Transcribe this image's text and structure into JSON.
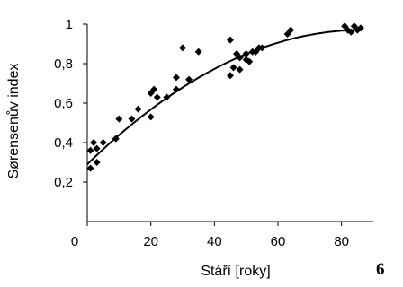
{
  "chart_data": {
    "type": "scatter",
    "title": "",
    "xlabel": "Stáří [roky]",
    "ylabel": "Sørensenův index",
    "xlim": [
      0,
      90
    ],
    "ylim": [
      0,
      1
    ],
    "x_ticks": [
      0,
      20,
      40,
      60,
      80
    ],
    "x_tick_labels": [
      "0",
      "20",
      "40",
      "60",
      "80"
    ],
    "y_ticks": [
      0.2,
      0.4,
      0.6,
      0.8,
      1.0
    ],
    "y_tick_labels": [
      "0,2",
      "0,4",
      "0,6",
      "0,8",
      "1"
    ],
    "grid": false,
    "legend": "none",
    "marker": "diamond",
    "marker_color": "#000000",
    "figure_number": "6",
    "points": [
      {
        "x": 1,
        "y": 0.27
      },
      {
        "x": 1,
        "y": 0.36
      },
      {
        "x": 2,
        "y": 0.4
      },
      {
        "x": 3,
        "y": 0.3
      },
      {
        "x": 3,
        "y": 0.37
      },
      {
        "x": 5,
        "y": 0.4
      },
      {
        "x": 9,
        "y": 0.42
      },
      {
        "x": 10,
        "y": 0.52
      },
      {
        "x": 14,
        "y": 0.52
      },
      {
        "x": 16,
        "y": 0.57
      },
      {
        "x": 20,
        "y": 0.53
      },
      {
        "x": 20,
        "y": 0.65
      },
      {
        "x": 21,
        "y": 0.67
      },
      {
        "x": 22,
        "y": 0.63
      },
      {
        "x": 25,
        "y": 0.63
      },
      {
        "x": 28,
        "y": 0.67
      },
      {
        "x": 28,
        "y": 0.73
      },
      {
        "x": 30,
        "y": 0.88
      },
      {
        "x": 32,
        "y": 0.72
      },
      {
        "x": 35,
        "y": 0.86
      },
      {
        "x": 45,
        "y": 0.74
      },
      {
        "x": 45,
        "y": 0.92
      },
      {
        "x": 46,
        "y": 0.78
      },
      {
        "x": 47,
        "y": 0.85
      },
      {
        "x": 48,
        "y": 0.77
      },
      {
        "x": 48,
        "y": 0.83
      },
      {
        "x": 50,
        "y": 0.85
      },
      {
        "x": 50,
        "y": 0.82
      },
      {
        "x": 51,
        "y": 0.81
      },
      {
        "x": 52,
        "y": 0.86
      },
      {
        "x": 53,
        "y": 0.86
      },
      {
        "x": 54,
        "y": 0.88
      },
      {
        "x": 55,
        "y": 0.88
      },
      {
        "x": 63,
        "y": 0.95
      },
      {
        "x": 64,
        "y": 0.97
      },
      {
        "x": 81,
        "y": 0.99
      },
      {
        "x": 82,
        "y": 0.97
      },
      {
        "x": 83,
        "y": 0.96
      },
      {
        "x": 84,
        "y": 0.99
      },
      {
        "x": 85,
        "y": 0.97
      },
      {
        "x": 86,
        "y": 0.98
      }
    ],
    "trendline": {
      "type": "polynomial-2",
      "coefficients": [
        0.29,
        0.0157,
        -9.05e-05
      ],
      "x_range": [
        0,
        85
      ]
    }
  }
}
